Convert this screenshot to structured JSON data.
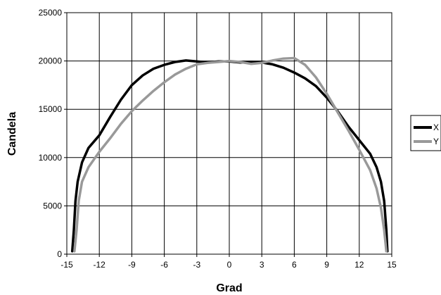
{
  "chart_data": {
    "type": "line",
    "xlabel": "Grad",
    "ylabel": "Candela",
    "xlim": [
      -15,
      15
    ],
    "ylim": [
      0,
      25000
    ],
    "x_ticks": [
      "-15",
      "-12",
      "-9",
      "-6",
      "-3",
      "0",
      "3",
      "6",
      "9",
      "12",
      "15"
    ],
    "y_ticks": [
      "0",
      "5000",
      "10000",
      "15000",
      "20000",
      "25000"
    ],
    "grid": true,
    "legend_position": "right",
    "series": [
      {
        "name": "X",
        "color": "#000000",
        "points": [
          [
            -14.5,
            300
          ],
          [
            -14.35,
            2500
          ],
          [
            -14.2,
            5500
          ],
          [
            -14,
            7500
          ],
          [
            -13.6,
            9500
          ],
          [
            -13,
            11000
          ],
          [
            -12,
            12300
          ],
          [
            -11,
            14200
          ],
          [
            -10,
            16000
          ],
          [
            -9,
            17500
          ],
          [
            -8,
            18500
          ],
          [
            -7,
            19200
          ],
          [
            -6,
            19600
          ],
          [
            -5,
            19900
          ],
          [
            -4,
            20050
          ],
          [
            -3,
            19950
          ],
          [
            -2,
            19850
          ],
          [
            -1,
            19950
          ],
          [
            0,
            19950
          ],
          [
            1,
            19850
          ],
          [
            2,
            19900
          ],
          [
            3,
            19850
          ],
          [
            4,
            19650
          ],
          [
            5,
            19300
          ],
          [
            6,
            18800
          ],
          [
            7,
            18200
          ],
          [
            8,
            17400
          ],
          [
            9,
            16200
          ],
          [
            10,
            14800
          ],
          [
            11,
            13200
          ],
          [
            12,
            11800
          ],
          [
            13,
            10400
          ],
          [
            13.6,
            9000
          ],
          [
            14,
            7500
          ],
          [
            14.3,
            5500
          ],
          [
            14.5,
            2500
          ],
          [
            14.6,
            300
          ]
        ]
      },
      {
        "name": "Y",
        "color": "#999999",
        "points": [
          [
            -14.3,
            300
          ],
          [
            -14.1,
            2500
          ],
          [
            -13.9,
            5500
          ],
          [
            -13.6,
            7500
          ],
          [
            -13,
            9000
          ],
          [
            -12,
            10600
          ],
          [
            -11,
            12000
          ],
          [
            -10,
            13500
          ],
          [
            -9,
            14800
          ],
          [
            -8,
            15900
          ],
          [
            -7,
            16900
          ],
          [
            -6,
            17800
          ],
          [
            -5,
            18600
          ],
          [
            -4,
            19200
          ],
          [
            -3,
            19650
          ],
          [
            -2,
            19800
          ],
          [
            -1,
            19900
          ],
          [
            0,
            20000
          ],
          [
            1,
            19900
          ],
          [
            2,
            19700
          ],
          [
            3,
            19800
          ],
          [
            4,
            20050
          ],
          [
            5,
            20250
          ],
          [
            6,
            20300
          ],
          [
            7,
            19600
          ],
          [
            8,
            18300
          ],
          [
            9,
            16600
          ],
          [
            10,
            14700
          ],
          [
            11,
            12800
          ],
          [
            12,
            10800
          ],
          [
            13,
            8700
          ],
          [
            13.6,
            6800
          ],
          [
            14,
            4800
          ],
          [
            14.3,
            2500
          ],
          [
            14.5,
            300
          ]
        ]
      }
    ]
  }
}
